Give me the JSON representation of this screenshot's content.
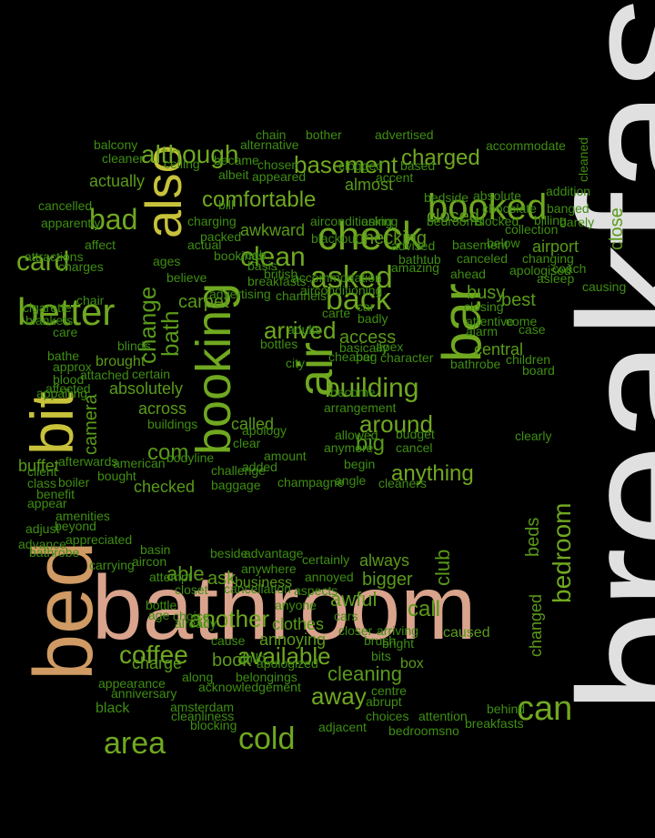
{
  "colors": {
    "background": "#000000",
    "breakfast": "#e0e0e0",
    "bathroom": "#d9a38c",
    "bed": "#cf9a63",
    "bit": "#c7c23a",
    "large": "#70a820",
    "medium": "#5a9a1a",
    "small": "#3f8e12"
  },
  "words": [
    {
      "text": "breakfast",
      "color": "breakfast",
      "v": true
    },
    {
      "text": "bathroom",
      "color": "bathroom"
    },
    {
      "text": "bed",
      "color": "bed",
      "v": true
    },
    {
      "text": "bit",
      "color": "bit",
      "v": true
    },
    {
      "text": "also",
      "color": "bit",
      "v": true
    },
    {
      "text": "booked",
      "color": "large"
    },
    {
      "text": "check",
      "color": "large"
    },
    {
      "text": "bar",
      "color": "large",
      "v": true
    },
    {
      "text": "better",
      "color": "large"
    },
    {
      "text": "air",
      "color": "large",
      "v": true
    },
    {
      "text": "booking",
      "color": "large",
      "v": true
    },
    {
      "text": "asked",
      "color": "large"
    },
    {
      "text": "back",
      "color": "large"
    },
    {
      "text": "building",
      "color": "large"
    },
    {
      "text": "area",
      "color": "large"
    },
    {
      "text": "cold",
      "color": "large"
    },
    {
      "text": "can",
      "color": "large"
    },
    {
      "text": "bad",
      "color": "large"
    },
    {
      "text": "card",
      "color": "large"
    },
    {
      "text": "clean",
      "color": "large"
    },
    {
      "text": "although",
      "color": "large"
    },
    {
      "text": "basement",
      "color": "large"
    },
    {
      "text": "charged",
      "color": "large"
    },
    {
      "text": "comfortable",
      "color": "large"
    },
    {
      "text": "arrived",
      "color": "large"
    },
    {
      "text": "around",
      "color": "large"
    },
    {
      "text": "coffee",
      "color": "large"
    },
    {
      "text": "another",
      "color": "large"
    },
    {
      "text": "available",
      "color": "large"
    },
    {
      "text": "away",
      "color": "large"
    },
    {
      "text": "anything",
      "color": "large"
    },
    {
      "text": "bedroom",
      "color": "large",
      "v": true
    },
    {
      "text": "close",
      "color": "medium",
      "v": true
    },
    {
      "text": "checking",
      "color": "medium"
    },
    {
      "text": "closed",
      "color": "medium"
    },
    {
      "text": "change",
      "color": "medium",
      "v": true
    },
    {
      "text": "bath",
      "color": "medium",
      "v": true
    },
    {
      "text": "com",
      "color": "medium"
    },
    {
      "text": "big",
      "color": "medium"
    },
    {
      "text": "call",
      "color": "medium"
    },
    {
      "text": "club",
      "color": "medium",
      "v": true
    },
    {
      "text": "able",
      "color": "medium"
    },
    {
      "text": "ask",
      "color": "medium"
    },
    {
      "text": "book",
      "color": "medium"
    },
    {
      "text": "charge",
      "color": "medium"
    },
    {
      "text": "cleaning",
      "color": "medium"
    },
    {
      "text": "annoying",
      "color": "medium"
    },
    {
      "text": "awful",
      "color": "medium"
    },
    {
      "text": "bigger",
      "color": "medium"
    },
    {
      "text": "always",
      "color": "medium"
    },
    {
      "text": "busy",
      "color": "medium"
    },
    {
      "text": "best",
      "color": "medium"
    },
    {
      "text": "central",
      "color": "medium"
    },
    {
      "text": "airport",
      "color": "medium"
    },
    {
      "text": "carpet",
      "color": "medium"
    },
    {
      "text": "access",
      "color": "medium"
    },
    {
      "text": "actually",
      "color": "medium"
    },
    {
      "text": "almost",
      "color": "medium"
    },
    {
      "text": "awkward",
      "color": "medium"
    },
    {
      "text": "across",
      "color": "medium"
    },
    {
      "text": "absolutely",
      "color": "medium"
    },
    {
      "text": "brought",
      "color": "medium"
    },
    {
      "text": "camera",
      "color": "medium",
      "v": true
    },
    {
      "text": "checked",
      "color": "medium"
    },
    {
      "text": "called",
      "color": "medium"
    },
    {
      "text": "buffet",
      "color": "medium"
    },
    {
      "text": "business",
      "color": "medium"
    },
    {
      "text": "clothes",
      "color": "medium"
    },
    {
      "text": "caused",
      "color": "medium"
    },
    {
      "text": "box",
      "color": "medium"
    },
    {
      "text": "changed",
      "color": "medium",
      "v": true
    },
    {
      "text": "beds",
      "color": "medium",
      "v": true
    },
    {
      "text": "black",
      "color": "small"
    },
    {
      "text": "blocking",
      "color": "small"
    },
    {
      "text": "amsterdam",
      "color": "small"
    },
    {
      "text": "cleanliness",
      "color": "small"
    },
    {
      "text": "adjacent",
      "color": "small"
    },
    {
      "text": "choices",
      "color": "small"
    },
    {
      "text": "attention",
      "color": "small"
    },
    {
      "text": "breakfasts",
      "color": "small"
    },
    {
      "text": "bedroomsno",
      "color": "small"
    },
    {
      "text": "behind",
      "color": "small"
    },
    {
      "text": "centre",
      "color": "small"
    },
    {
      "text": "abrupt",
      "color": "small"
    },
    {
      "text": "anniversary",
      "color": "small"
    },
    {
      "text": "acknowledgement",
      "color": "small"
    },
    {
      "text": "along",
      "color": "small"
    },
    {
      "text": "appearance",
      "color": "small"
    },
    {
      "text": "belongings",
      "color": "small"
    },
    {
      "text": "apologized",
      "color": "small"
    },
    {
      "text": "child",
      "color": "small"
    },
    {
      "text": "cause",
      "color": "small"
    },
    {
      "text": "already",
      "color": "small"
    },
    {
      "text": "choice",
      "color": "small"
    },
    {
      "text": "closer",
      "color": "small"
    },
    {
      "text": "arriving",
      "color": "small"
    },
    {
      "text": "bright",
      "color": "small"
    },
    {
      "text": "brush",
      "color": "small"
    },
    {
      "text": "bits",
      "color": "small"
    },
    {
      "text": "cars",
      "color": "small"
    },
    {
      "text": "anyone",
      "color": "small"
    },
    {
      "text": "aspects",
      "color": "small"
    },
    {
      "text": "annoyed",
      "color": "small"
    },
    {
      "text": "certainly",
      "color": "small"
    },
    {
      "text": "advantage",
      "color": "small"
    },
    {
      "text": "anywhere",
      "color": "small"
    },
    {
      "text": "cancellation",
      "color": "small"
    },
    {
      "text": "closet",
      "color": "small"
    },
    {
      "text": "bottle",
      "color": "small"
    },
    {
      "text": "age",
      "color": "small"
    },
    {
      "text": "attempt",
      "color": "small"
    },
    {
      "text": "beside",
      "color": "small"
    },
    {
      "text": "basin",
      "color": "small"
    },
    {
      "text": "carrying",
      "color": "small"
    },
    {
      "text": "aircon",
      "color": "small"
    },
    {
      "text": "appreciated",
      "color": "small"
    },
    {
      "text": "bathrobe",
      "color": "small"
    },
    {
      "text": "advance",
      "color": "small"
    },
    {
      "text": "adjust",
      "color": "small"
    },
    {
      "text": "beyond",
      "color": "small"
    },
    {
      "text": "amenities",
      "color": "small"
    },
    {
      "text": "appear",
      "color": "small"
    },
    {
      "text": "benefit",
      "color": "small"
    },
    {
      "text": "class",
      "color": "small"
    },
    {
      "text": "client",
      "color": "small"
    },
    {
      "text": "boiler",
      "color": "small"
    },
    {
      "text": "bought",
      "color": "small"
    },
    {
      "text": "cleaners",
      "color": "small"
    },
    {
      "text": "angle",
      "color": "small"
    },
    {
      "text": "champagne",
      "color": "small"
    },
    {
      "text": "baggage",
      "color": "small"
    },
    {
      "text": "added",
      "color": "small"
    },
    {
      "text": "amount",
      "color": "small"
    },
    {
      "text": "challenge",
      "color": "small"
    },
    {
      "text": "bodyline",
      "color": "small"
    },
    {
      "text": "american",
      "color": "small"
    },
    {
      "text": "afterwards",
      "color": "small"
    },
    {
      "text": "clear",
      "color": "small"
    },
    {
      "text": "clearly",
      "color": "small"
    },
    {
      "text": "cancel",
      "color": "small"
    },
    {
      "text": "budget",
      "color": "small"
    },
    {
      "text": "anymore",
      "color": "small"
    },
    {
      "text": "begin",
      "color": "small"
    },
    {
      "text": "apology",
      "color": "small"
    },
    {
      "text": "buildings",
      "color": "small"
    },
    {
      "text": "certain",
      "color": "small"
    },
    {
      "text": "affected",
      "color": "small"
    },
    {
      "text": "blood",
      "color": "small"
    },
    {
      "text": "approx",
      "color": "small"
    },
    {
      "text": "attached",
      "color": "small"
    },
    {
      "text": "appalling",
      "color": "small"
    },
    {
      "text": "blinds",
      "color": "small"
    },
    {
      "text": "bathe",
      "color": "small"
    },
    {
      "text": "care",
      "color": "small"
    },
    {
      "text": "blankets",
      "color": "small"
    },
    {
      "text": "cigarette",
      "color": "small"
    },
    {
      "text": "chair",
      "color": "small"
    },
    {
      "text": "charges",
      "color": "small"
    },
    {
      "text": "attractions",
      "color": "small"
    },
    {
      "text": "apparently",
      "color": "small"
    },
    {
      "text": "cancelled",
      "color": "small"
    },
    {
      "text": "affect",
      "color": "small"
    },
    {
      "text": "balcony",
      "color": "small"
    },
    {
      "text": "cleaner",
      "color": "small"
    },
    {
      "text": "ceiling",
      "color": "small"
    },
    {
      "text": "became",
      "color": "small"
    },
    {
      "text": "albeit",
      "color": "small"
    },
    {
      "text": "appeared",
      "color": "small"
    },
    {
      "text": "chosen",
      "color": "small"
    },
    {
      "text": "alternative",
      "color": "small"
    },
    {
      "text": "chain",
      "color": "small"
    },
    {
      "text": "bother",
      "color": "small"
    },
    {
      "text": "advertised",
      "color": "small"
    },
    {
      "text": "clogged",
      "color": "small"
    },
    {
      "text": "accent",
      "color": "small"
    },
    {
      "text": "based",
      "color": "small"
    },
    {
      "text": "accommodate",
      "color": "small"
    },
    {
      "text": "cleaned",
      "color": "small",
      "v": true
    },
    {
      "text": "bedside",
      "color": "small"
    },
    {
      "text": "absolute",
      "color": "small"
    },
    {
      "text": "addition",
      "color": "small"
    },
    {
      "text": "chocolate",
      "color": "small"
    },
    {
      "text": "banged",
      "color": "small"
    },
    {
      "text": "blocked",
      "color": "small"
    },
    {
      "text": "billing",
      "color": "small"
    },
    {
      "text": "barely",
      "color": "small"
    },
    {
      "text": "collection",
      "color": "small"
    },
    {
      "text": "below",
      "color": "small"
    },
    {
      "text": "basement",
      "color": "small"
    },
    {
      "text": "canceled",
      "color": "small"
    },
    {
      "text": "changing",
      "color": "small"
    },
    {
      "text": "apologised",
      "color": "small"
    },
    {
      "text": "coach",
      "color": "small"
    },
    {
      "text": "asleep",
      "color": "small"
    },
    {
      "text": "causing",
      "color": "small"
    },
    {
      "text": "closing",
      "color": "small"
    },
    {
      "text": "attentive",
      "color": "small"
    },
    {
      "text": "come",
      "color": "small"
    },
    {
      "text": "case",
      "color": "small"
    },
    {
      "text": "alarm",
      "color": "small"
    },
    {
      "text": "bathrobe",
      "color": "small"
    },
    {
      "text": "children",
      "color": "small"
    },
    {
      "text": "board",
      "color": "small"
    },
    {
      "text": "character",
      "color": "small"
    },
    {
      "text": "bag",
      "color": "small"
    },
    {
      "text": "cheaper",
      "color": "small"
    },
    {
      "text": "city",
      "color": "small"
    },
    {
      "text": "become",
      "color": "small"
    },
    {
      "text": "arrangement",
      "color": "small"
    },
    {
      "text": "allowed",
      "color": "small"
    },
    {
      "text": "bill",
      "color": "small"
    },
    {
      "text": "airconditioning",
      "color": "small"
    },
    {
      "text": "asking",
      "color": "small"
    },
    {
      "text": "bedrooms",
      "color": "small"
    },
    {
      "text": "blackout",
      "color": "small"
    },
    {
      "text": "advised",
      "color": "small"
    },
    {
      "text": "bathtub",
      "color": "small"
    },
    {
      "text": "amazing",
      "color": "small"
    },
    {
      "text": "ahead",
      "color": "small"
    },
    {
      "text": "charging",
      "color": "small"
    },
    {
      "text": "packed",
      "color": "small"
    },
    {
      "text": "actual",
      "color": "small"
    },
    {
      "text": "bookings",
      "color": "small"
    },
    {
      "text": "ages",
      "color": "small"
    },
    {
      "text": "believe",
      "color": "small"
    },
    {
      "text": "advertising",
      "color": "small"
    },
    {
      "text": "airconditioning",
      "color": "small"
    },
    {
      "text": "accommodation",
      "color": "small"
    },
    {
      "text": "british",
      "color": "small"
    },
    {
      "text": "basis",
      "color": "small"
    },
    {
      "text": "cab",
      "color": "small"
    },
    {
      "text": "breakfasts",
      "color": "small"
    },
    {
      "text": "carte",
      "color": "small"
    },
    {
      "text": "channels",
      "color": "small"
    },
    {
      "text": "car",
      "color": "small"
    },
    {
      "text": "adults",
      "color": "small"
    },
    {
      "text": "bottles",
      "color": "small"
    },
    {
      "text": "basically",
      "color": "small"
    },
    {
      "text": "apex",
      "color": "small"
    },
    {
      "text": "badly",
      "color": "small"
    },
    {
      "text": "bed",
      "color": "small"
    }
  ]
}
